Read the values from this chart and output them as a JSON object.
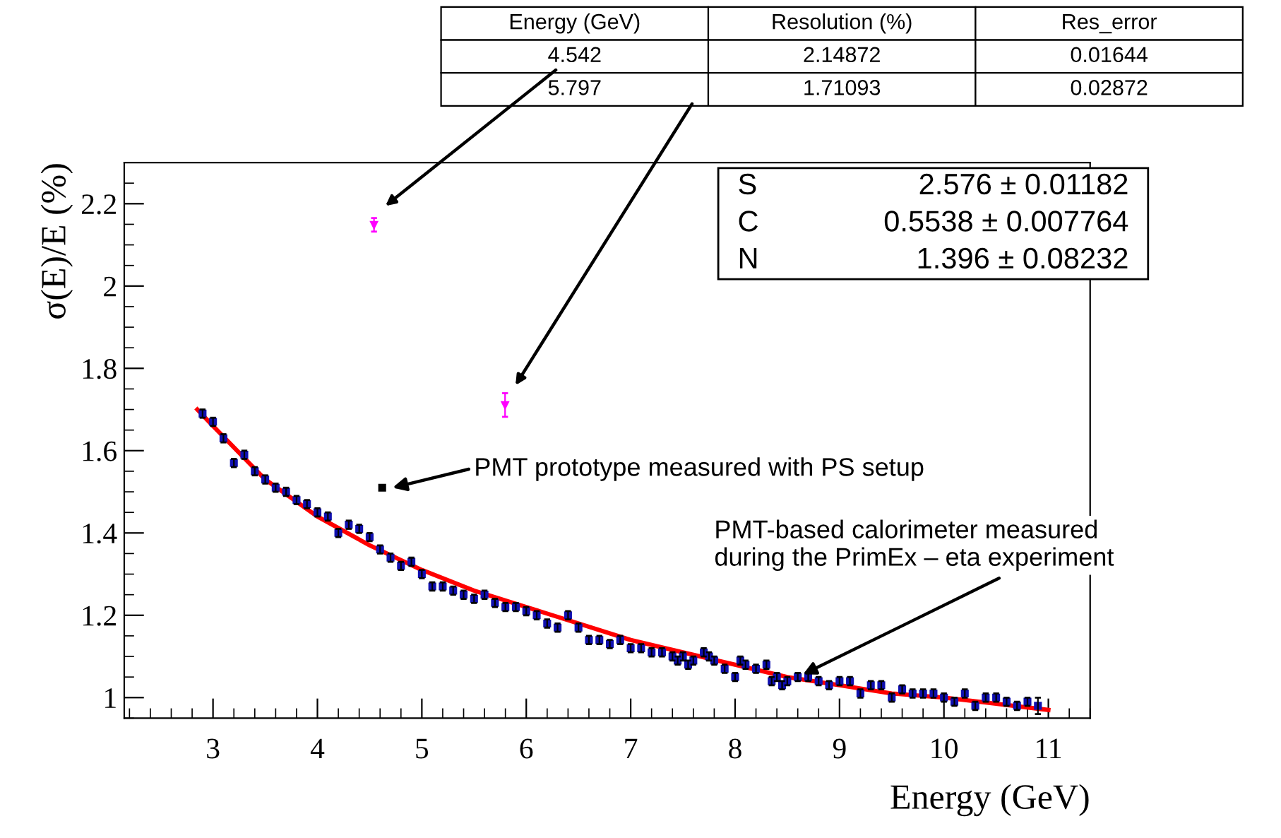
{
  "chart_data": {
    "type": "scatter",
    "xlabel": "Energy (GeV)",
    "ylabel": "σ(E)/E (%)",
    "xlim": [
      2.15,
      11.4
    ],
    "ylim": [
      0.95,
      2.3
    ],
    "xticks": [
      3,
      4,
      5,
      6,
      7,
      8,
      9,
      10,
      11
    ],
    "yticks": [
      1,
      1.2,
      1.4,
      1.6,
      1.8,
      2,
      2.2
    ],
    "grid": false,
    "legend": false,
    "marker": "square",
    "series": [
      {
        "color": "#1010b0",
        "x": [
          2.9,
          3.0,
          3.1,
          3.2,
          3.3,
          3.4,
          3.5,
          3.6,
          3.7,
          3.8,
          3.9,
          4.0,
          4.1,
          4.2,
          4.3,
          4.4,
          4.5,
          4.6,
          4.7,
          4.8,
          4.9,
          5.0,
          5.1,
          5.2,
          5.3,
          5.4,
          5.5,
          5.6,
          5.7,
          5.8,
          5.9,
          6.0,
          6.1,
          6.2,
          6.3,
          6.4,
          6.5,
          6.6,
          6.7,
          6.8,
          6.9,
          7.0,
          7.1,
          7.2,
          7.3,
          7.4,
          7.45,
          7.5,
          7.55,
          7.6,
          7.7,
          7.75,
          7.8,
          7.9,
          8.0,
          8.05,
          8.1,
          8.2,
          8.3,
          8.35,
          8.4,
          8.45,
          8.5,
          8.6,
          8.7,
          8.8,
          8.9,
          9.0,
          9.1,
          9.2,
          9.3,
          9.4,
          9.5,
          9.6,
          9.7,
          9.8,
          9.9,
          10.0,
          10.1,
          10.2,
          10.3,
          10.4,
          10.5,
          10.6,
          10.7,
          10.8,
          10.9
        ],
        "values": [
          1.69,
          1.67,
          1.63,
          1.57,
          1.59,
          1.55,
          1.53,
          1.51,
          1.5,
          1.48,
          1.47,
          1.45,
          1.44,
          1.4,
          1.42,
          1.41,
          1.39,
          1.36,
          1.34,
          1.32,
          1.33,
          1.3,
          1.27,
          1.27,
          1.26,
          1.25,
          1.24,
          1.25,
          1.23,
          1.22,
          1.22,
          1.21,
          1.2,
          1.18,
          1.17,
          1.2,
          1.17,
          1.14,
          1.14,
          1.13,
          1.14,
          1.12,
          1.12,
          1.11,
          1.11,
          1.1,
          1.09,
          1.1,
          1.08,
          1.09,
          1.11,
          1.1,
          1.09,
          1.07,
          1.05,
          1.09,
          1.08,
          1.07,
          1.08,
          1.04,
          1.05,
          1.03,
          1.04,
          1.05,
          1.05,
          1.04,
          1.03,
          1.04,
          1.04,
          1.01,
          1.03,
          1.03,
          1.0,
          1.02,
          1.01,
          1.01,
          1.01,
          1.0,
          0.99,
          1.01,
          0.98,
          1.0,
          1.0,
          0.99,
          0.98,
          0.99,
          0.98
        ],
        "errors": [
          0.01,
          0.01,
          0.01,
          0.01,
          0.01,
          0.01,
          0.01,
          0.01,
          0.01,
          0.01,
          0.01,
          0.01,
          0.01,
          0.01,
          0.01,
          0.01,
          0.01,
          0.01,
          0.01,
          0.01,
          0.01,
          0.01,
          0.01,
          0.01,
          0.01,
          0.01,
          0.01,
          0.01,
          0.01,
          0.01,
          0.01,
          0.01,
          0.01,
          0.01,
          0.01,
          0.01,
          0.01,
          0.01,
          0.01,
          0.01,
          0.01,
          0.01,
          0.01,
          0.01,
          0.01,
          0.01,
          0.01,
          0.01,
          0.01,
          0.01,
          0.01,
          0.01,
          0.01,
          0.01,
          0.01,
          0.01,
          0.01,
          0.01,
          0.01,
          0.01,
          0.01,
          0.01,
          0.01,
          0.01,
          0.01,
          0.01,
          0.01,
          0.01,
          0.01,
          0.01,
          0.01,
          0.01,
          0.01,
          0.01,
          0.01,
          0.01,
          0.01,
          0.01,
          0.01,
          0.01,
          0.01,
          0.01,
          0.01,
          0.01,
          0.01,
          0.01,
          0.02
        ]
      },
      {
        "color": "#ff00ff",
        "marker": "triangle",
        "x": [
          4.542,
          5.797
        ],
        "values": [
          2.14872,
          1.71093
        ],
        "errors": [
          0.01644,
          0.02872
        ]
      },
      {
        "color": "#000000",
        "x": [
          4.62
        ],
        "values": [
          1.51
        ]
      },
      {
        "type": "line",
        "marker": "none",
        "color": "#ff0000",
        "x": [
          2.85,
          3,
          3.5,
          4,
          4.5,
          5,
          5.5,
          6,
          6.5,
          7,
          7.5,
          8,
          8.5,
          9,
          9.5,
          10,
          10.5,
          11
        ],
        "values": [
          1.7,
          1.66,
          1.53,
          1.44,
          1.37,
          1.31,
          1.26,
          1.22,
          1.18,
          1.14,
          1.11,
          1.08,
          1.05,
          1.03,
          1.01,
          1.0,
          0.985,
          0.97
        ]
      }
    ],
    "annotations": [
      "Energy (GeV)",
      "Resolution (%)",
      "Res_error",
      "4.542",
      "2.14872",
      "0.01644",
      "5.797",
      "1.71093",
      "0.02872",
      "S",
      "2.576 ± 0.01182",
      "C",
      "0.5538 ± 0.007764",
      "N",
      "1.396 ± 0.08232",
      "PMT prototype measured with PS setup",
      {
        "text": "PMT-based calorimeter measured\nduring the PrimEx – eta experiment",
        "x": 8.6,
        "y": 1.05
      }
    ]
  }
}
